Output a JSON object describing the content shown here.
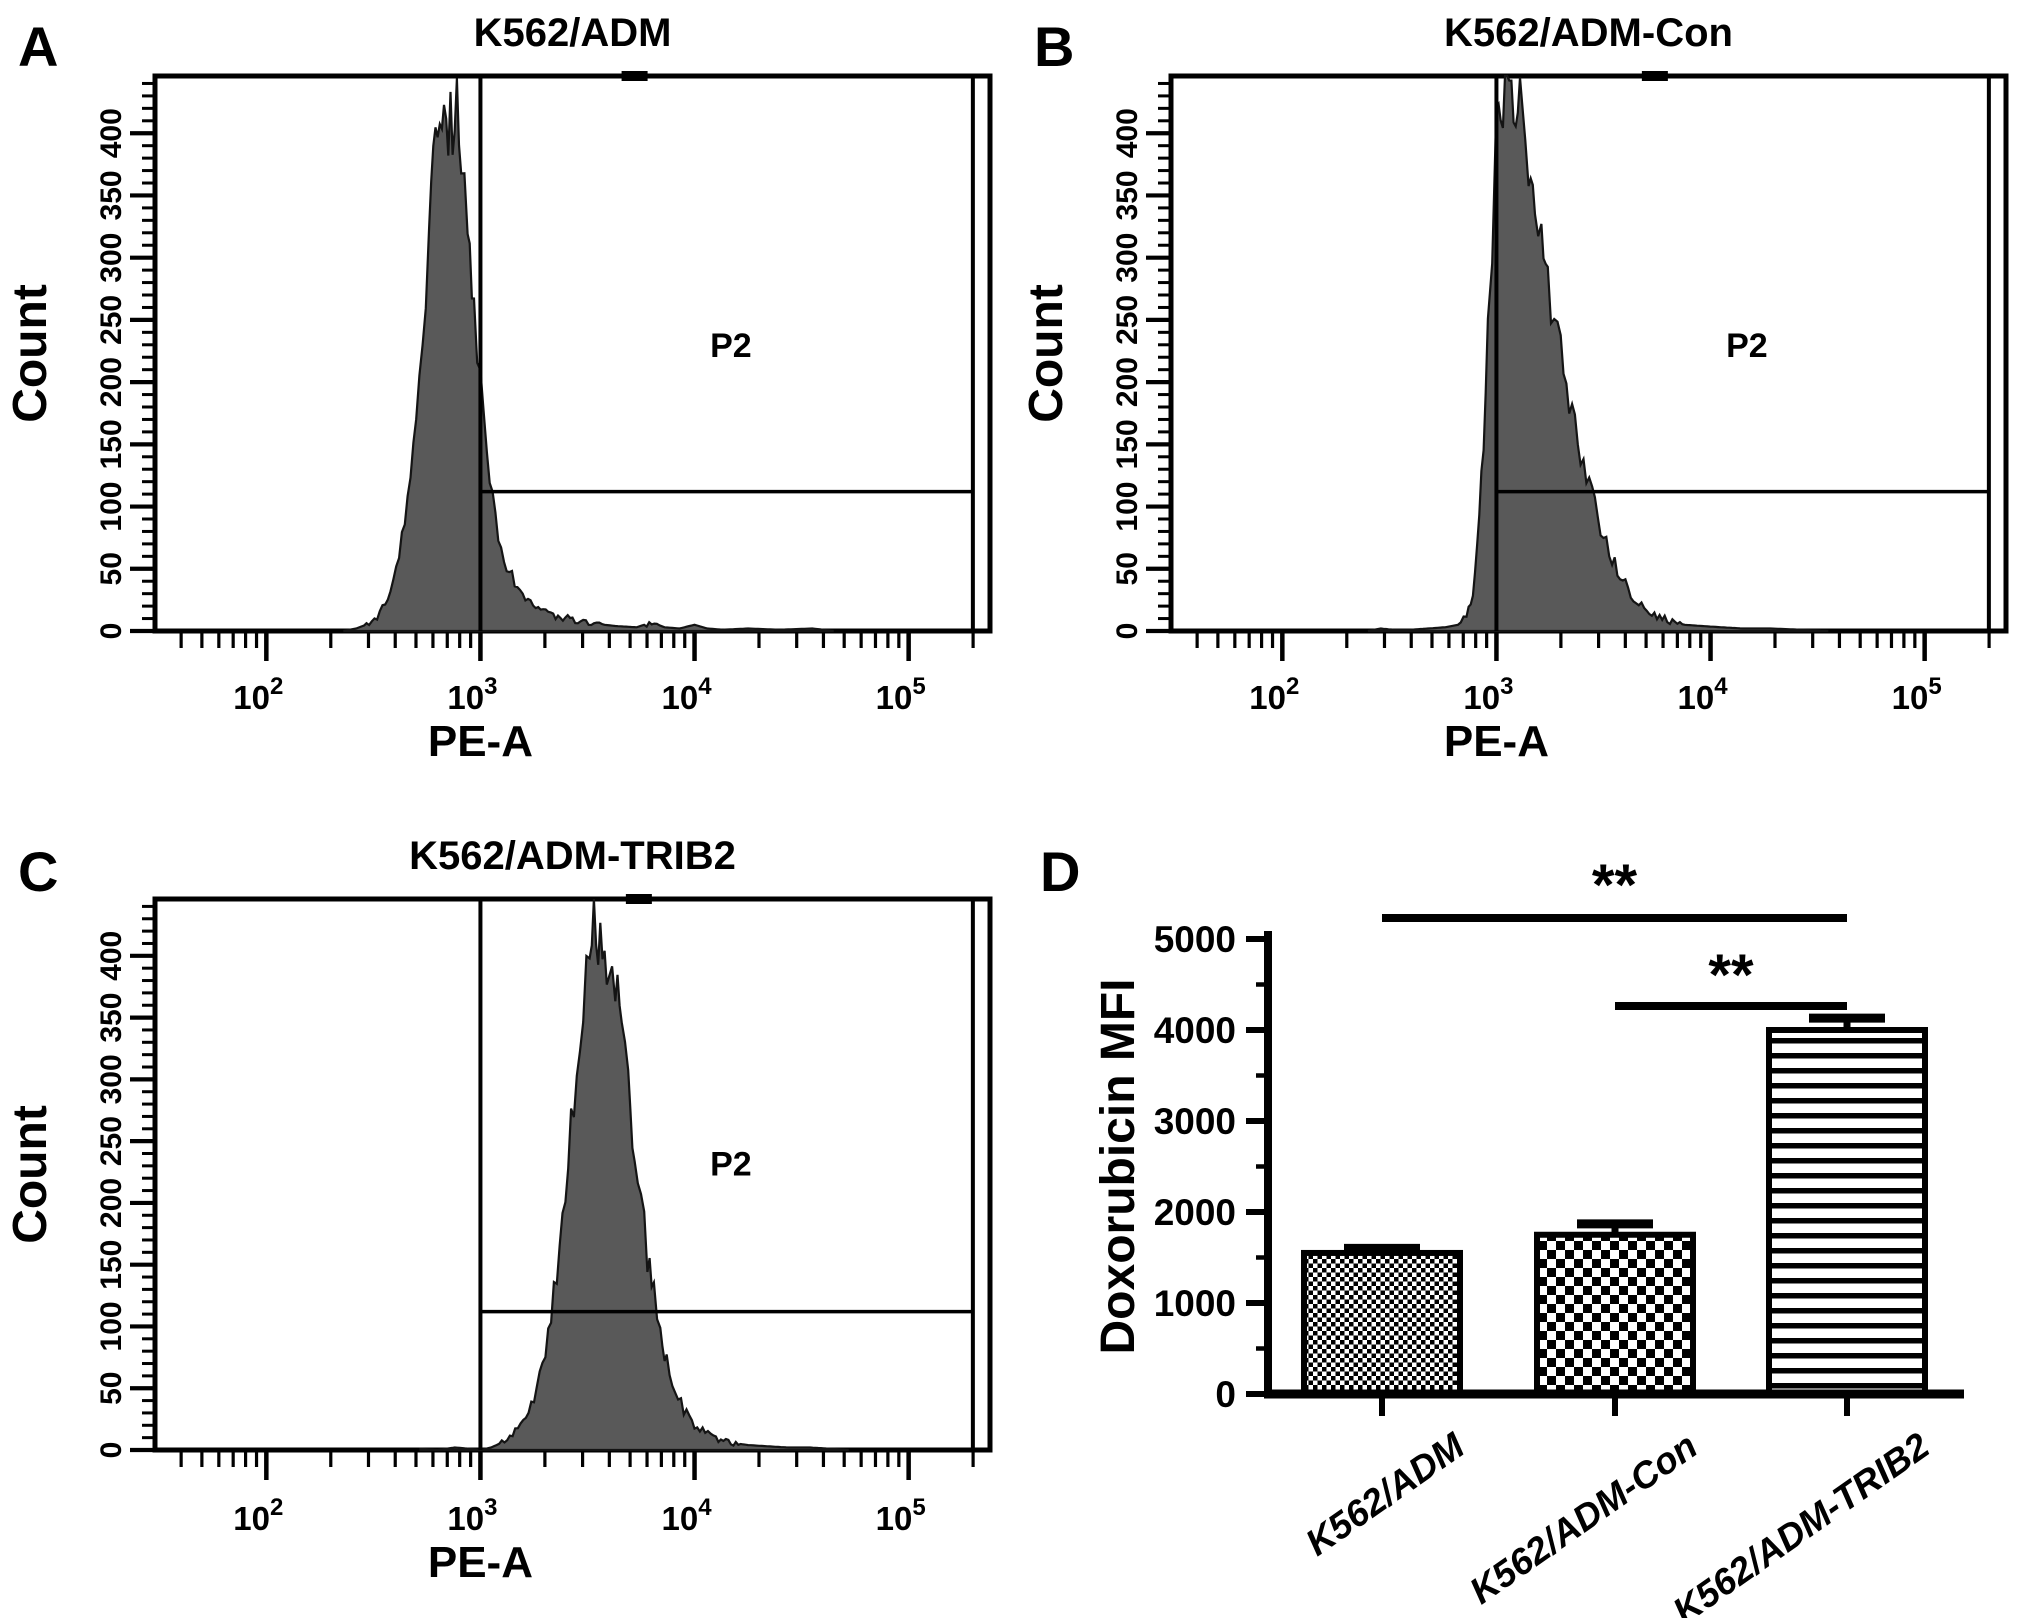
{
  "figure": {
    "background": "#ffffff",
    "histogram_fill": "#595959",
    "line_color": "#000000",
    "text_color": "#111111"
  },
  "chart_data": [
    {
      "id": "A",
      "letter": "A",
      "type": "area",
      "subtype": "flow-cytometry-histogram",
      "title": "K562/ADM",
      "xlabel": "PE-A",
      "ylabel": "Count",
      "x_scale": "log10",
      "xlim_log": [
        1.48,
        5.38
      ],
      "x_tick_exponents": [
        2,
        3,
        4,
        5
      ],
      "ylim": [
        0,
        446
      ],
      "y_ticks": [
        0,
        50,
        100,
        150,
        200,
        250,
        300,
        350,
        400
      ],
      "grid": false,
      "gate": {
        "label": "P2",
        "x_log": 3.0,
        "x2_log": 5.3,
        "y_count": 112,
        "label_log": 4.17,
        "label_count": 220,
        "handle_log": 3.72
      },
      "points": [
        [
          2.36,
          0
        ],
        [
          2.42,
          2
        ],
        [
          2.48,
          6
        ],
        [
          2.53,
          14
        ],
        [
          2.58,
          30
        ],
        [
          2.62,
          60
        ],
        [
          2.66,
          105
        ],
        [
          2.7,
          170
        ],
        [
          2.73,
          240
        ],
        [
          2.76,
          315
        ],
        [
          2.79,
          385
        ],
        [
          2.81,
          430
        ],
        [
          2.83,
          443
        ],
        [
          2.85,
          415
        ],
        [
          2.87,
          392
        ],
        [
          2.89,
          412
        ],
        [
          2.91,
          378
        ],
        [
          2.94,
          322
        ],
        [
          2.97,
          258
        ],
        [
          3.0,
          196
        ],
        [
          3.03,
          140
        ],
        [
          3.07,
          90
        ],
        [
          3.11,
          58
        ],
        [
          3.16,
          38
        ],
        [
          3.21,
          27
        ],
        [
          3.27,
          19
        ],
        [
          3.34,
          13
        ],
        [
          3.43,
          9
        ],
        [
          3.53,
          6
        ],
        [
          3.63,
          4
        ],
        [
          3.73,
          3
        ],
        [
          3.8,
          7
        ],
        [
          3.86,
          3
        ],
        [
          3.93,
          2
        ],
        [
          4.0,
          5
        ],
        [
          4.06,
          2
        ],
        [
          4.13,
          1
        ],
        [
          4.25,
          2
        ],
        [
          4.4,
          1
        ],
        [
          4.55,
          2
        ],
        [
          4.65,
          0
        ]
      ]
    },
    {
      "id": "B",
      "letter": "B",
      "type": "area",
      "subtype": "flow-cytometry-histogram",
      "title": "K562/ADM-Con",
      "xlabel": "PE-A",
      "ylabel": "Count",
      "x_scale": "log10",
      "xlim_log": [
        1.48,
        5.38
      ],
      "x_tick_exponents": [
        2,
        3,
        4,
        5
      ],
      "ylim": [
        0,
        446
      ],
      "y_ticks": [
        0,
        50,
        100,
        150,
        200,
        250,
        300,
        350,
        400
      ],
      "grid": false,
      "gate": {
        "label": "P2",
        "x_log": 3.0,
        "x2_log": 5.3,
        "y_count": 112,
        "label_log": 4.17,
        "label_count": 220,
        "handle_log": 3.74
      },
      "points": [
        [
          2.4,
          0
        ],
        [
          2.46,
          2
        ],
        [
          2.52,
          1
        ],
        [
          2.6,
          1
        ],
        [
          2.68,
          2
        ],
        [
          2.76,
          3
        ],
        [
          2.82,
          5
        ],
        [
          2.86,
          12
        ],
        [
          2.89,
          30
        ],
        [
          2.91,
          65
        ],
        [
          2.93,
          120
        ],
        [
          2.95,
          195
        ],
        [
          2.97,
          280
        ],
        [
          2.99,
          360
        ],
        [
          3.01,
          420
        ],
        [
          3.04,
          443
        ],
        [
          3.06,
          420
        ],
        [
          3.08,
          440
        ],
        [
          3.1,
          405
        ],
        [
          3.12,
          418
        ],
        [
          3.15,
          385
        ],
        [
          3.18,
          352
        ],
        [
          3.21,
          315
        ],
        [
          3.24,
          285
        ],
        [
          3.27,
          254
        ],
        [
          3.3,
          222
        ],
        [
          3.34,
          188
        ],
        [
          3.38,
          156
        ],
        [
          3.42,
          127
        ],
        [
          3.46,
          101
        ],
        [
          3.5,
          78
        ],
        [
          3.54,
          58
        ],
        [
          3.59,
          40
        ],
        [
          3.64,
          27
        ],
        [
          3.69,
          18
        ],
        [
          3.75,
          12
        ],
        [
          3.81,
          8
        ],
        [
          3.88,
          5
        ],
        [
          3.96,
          4
        ],
        [
          4.05,
          3
        ],
        [
          4.15,
          2
        ],
        [
          4.28,
          2
        ],
        [
          4.42,
          1
        ],
        [
          4.55,
          0
        ]
      ]
    },
    {
      "id": "C",
      "letter": "C",
      "type": "area",
      "subtype": "flow-cytometry-histogram",
      "title": "K562/ADM-TRIB2",
      "xlabel": "PE-A",
      "ylabel": "Count",
      "x_scale": "log10",
      "xlim_log": [
        1.48,
        5.38
      ],
      "x_tick_exponents": [
        2,
        3,
        4,
        5
      ],
      "ylim": [
        0,
        446
      ],
      "y_ticks": [
        0,
        50,
        100,
        150,
        200,
        250,
        300,
        350,
        400
      ],
      "grid": false,
      "gate": {
        "label": "P2",
        "x_log": 3.0,
        "x2_log": 5.3,
        "y_count": 112,
        "label_log": 4.17,
        "label_count": 222,
        "handle_log": 3.74
      },
      "points": [
        [
          2.72,
          1
        ],
        [
          2.8,
          0
        ],
        [
          2.88,
          2
        ],
        [
          2.95,
          1
        ],
        [
          3.0,
          0
        ],
        [
          3.05,
          2
        ],
        [
          3.1,
          6
        ],
        [
          3.15,
          12
        ],
        [
          3.2,
          22
        ],
        [
          3.25,
          40
        ],
        [
          3.29,
          68
        ],
        [
          3.33,
          110
        ],
        [
          3.37,
          165
        ],
        [
          3.41,
          235
        ],
        [
          3.45,
          310
        ],
        [
          3.48,
          368
        ],
        [
          3.51,
          405
        ],
        [
          3.54,
          425
        ],
        [
          3.56,
          398
        ],
        [
          3.58,
          420
        ],
        [
          3.6,
          392
        ],
        [
          3.63,
          368
        ],
        [
          3.66,
          330
        ],
        [
          3.69,
          288
        ],
        [
          3.72,
          242
        ],
        [
          3.75,
          198
        ],
        [
          3.78,
          158
        ],
        [
          3.81,
          124
        ],
        [
          3.84,
          97
        ],
        [
          3.87,
          72
        ],
        [
          3.91,
          50
        ],
        [
          3.95,
          33
        ],
        [
          4.0,
          21
        ],
        [
          4.05,
          14
        ],
        [
          4.1,
          9
        ],
        [
          4.17,
          6
        ],
        [
          4.25,
          4
        ],
        [
          4.34,
          3
        ],
        [
          4.44,
          2
        ],
        [
          4.54,
          2
        ],
        [
          4.64,
          1
        ],
        [
          4.72,
          0
        ]
      ]
    },
    {
      "id": "D",
      "letter": "D",
      "type": "bar",
      "title": "",
      "xlabel": "",
      "ylabel": "Doxorubicin MFI",
      "categories": [
        "K562/ADM",
        "K562/ADM-Con",
        "K562/ADM-TRIB2"
      ],
      "values": [
        1550,
        1750,
        4000
      ],
      "errors": [
        50,
        120,
        130
      ],
      "ylim": [
        0,
        5000
      ],
      "y_ticks": [
        0,
        1000,
        2000,
        3000,
        4000,
        5000
      ],
      "y_minor_step": 500,
      "grid": false,
      "bar_patterns": [
        "fine-checkerboard",
        "coarse-checkerboard",
        "horizontal-stripes"
      ],
      "significance": [
        {
          "pair": [
            0,
            2
          ],
          "label": "**"
        },
        {
          "pair": [
            1,
            2
          ],
          "label": "**"
        }
      ]
    }
  ]
}
